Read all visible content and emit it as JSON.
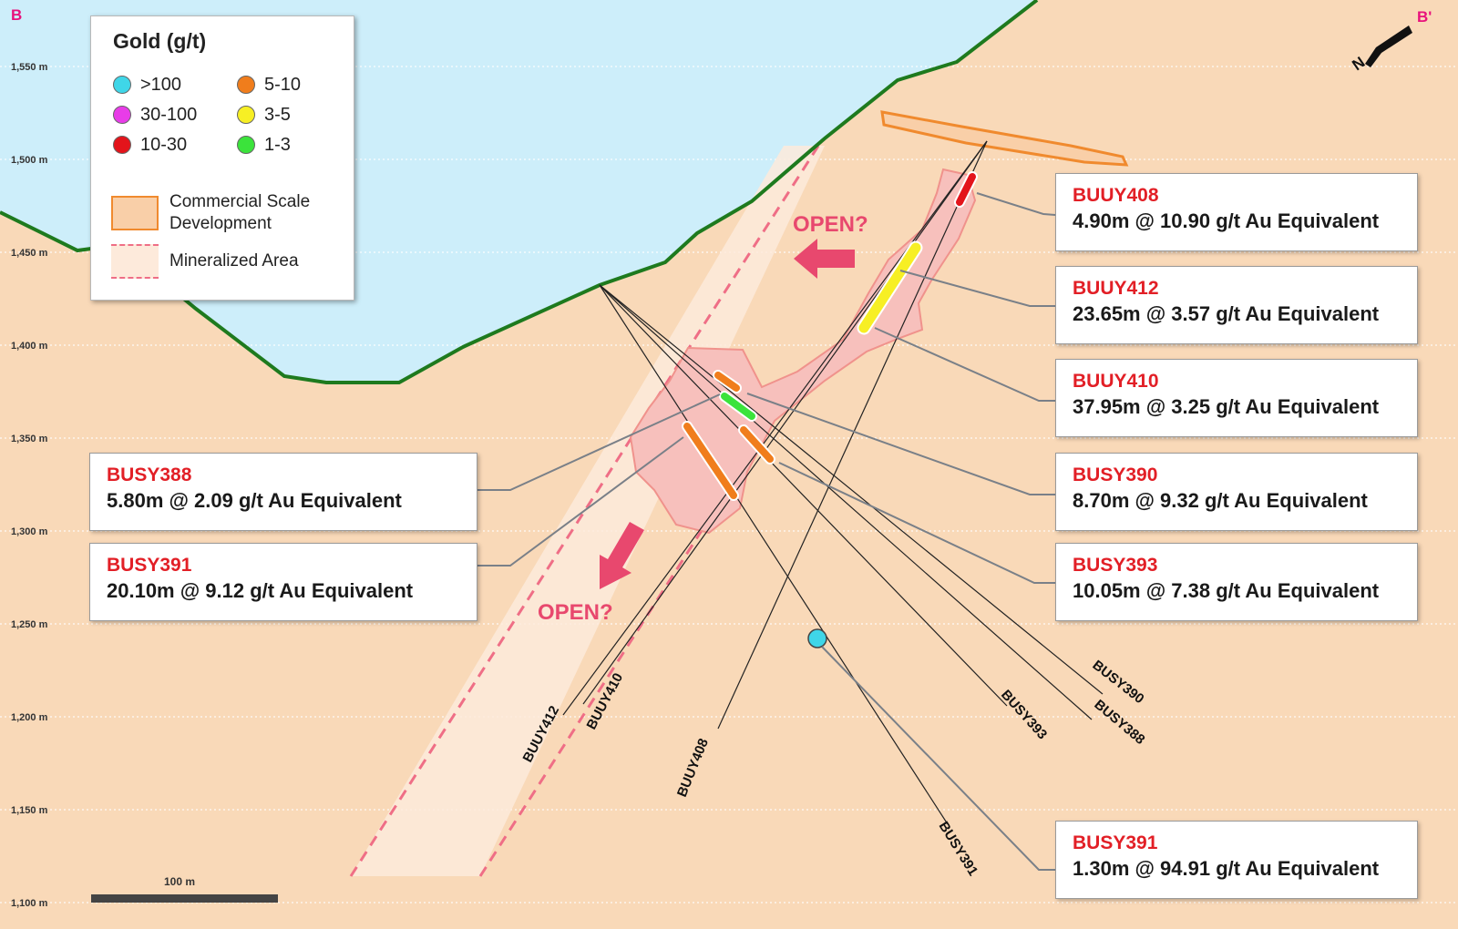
{
  "section": {
    "left_label": "B",
    "right_label": "B'",
    "north_label": "N",
    "elevations": [
      "1,550 m",
      "1,500 m",
      "1,450 m",
      "1,400 m",
      "1,350 m",
      "1,300 m",
      "1,250 m",
      "1,200 m",
      "1,150 m",
      "1,100 m"
    ],
    "scale_bar_label": "100 m",
    "open_labels": [
      "OPEN?",
      "OPEN?"
    ],
    "hole_labels": [
      "BUUY412",
      "BUUY410",
      "BUUY408",
      "BUSY391",
      "BUSY393",
      "BUSY390",
      "BUSY388"
    ]
  },
  "legend": {
    "title": "Gold (g/t)",
    "grades": [
      {
        "label": ">100",
        "color": "#3fd6e8"
      },
      {
        "label": "30-100",
        "color": "#e83ce8"
      },
      {
        "label": "10-30",
        "color": "#e3141b"
      },
      {
        "label": "5-10",
        "color": "#f07d1c"
      },
      {
        "label": "3-5",
        "color": "#f7ef24"
      },
      {
        "label": "1-3",
        "color": "#3be33b"
      }
    ],
    "development_label": "Commercial Scale Development",
    "mineralized_label": "Mineralized Area"
  },
  "callouts": [
    {
      "hole": "BUUY408",
      "result": "4.90m @ 10.90 g/t Au Equivalent"
    },
    {
      "hole": "BUUY412",
      "result": "23.65m @ 3.57 g/t Au Equivalent"
    },
    {
      "hole": "BUUY410",
      "result": "37.95m @ 3.25 g/t Au Equivalent"
    },
    {
      "hole": "BUSY390",
      "result": "8.70m @ 9.32 g/t Au Equivalent"
    },
    {
      "hole": "BUSY393",
      "result": "10.05m @ 7.38 g/t Au Equivalent"
    },
    {
      "hole": "BUSY391",
      "result": "1.30m @ 94.91 g/t Au Equivalent"
    },
    {
      "hole": "BUSY388",
      "result": "5.80m @ 2.09 g/t Au Equivalent"
    },
    {
      "hole": "BUSY391",
      "result": "20.10m @ 9.12 g/t Au Equivalent"
    }
  ],
  "colors": {
    "ground": "#f9d9b8",
    "sky": "#cdeefa",
    "topography": "#1e7a1e",
    "mineralized_zone": "#fdeadb",
    "mineralized_outline": "#ef6e86",
    "development": "#f08a2e",
    "zone_body": "#f7c0bc",
    "arrow": "#e8486e"
  }
}
